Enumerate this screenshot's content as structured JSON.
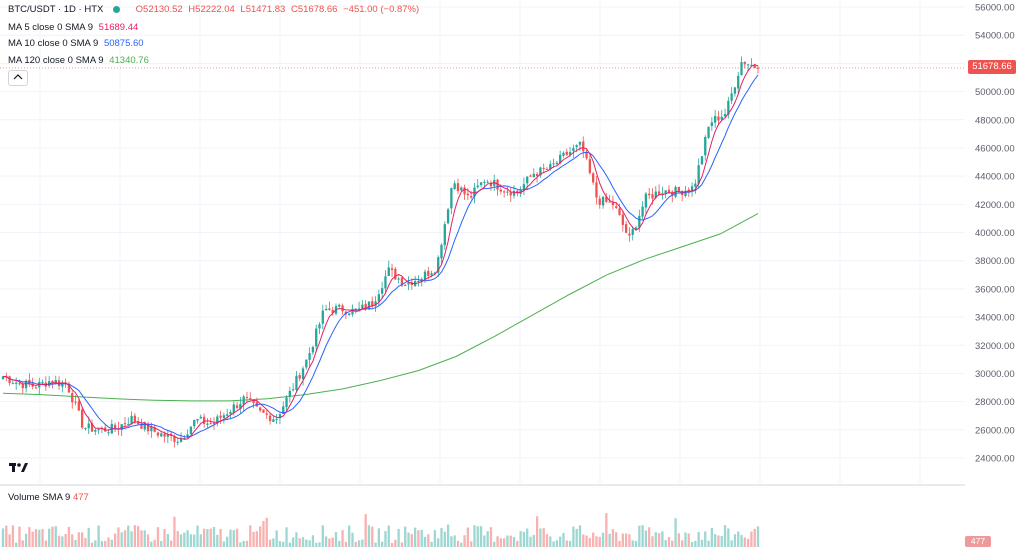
{
  "header": {
    "symbol": "BTC/USDT · 1D · HTX",
    "open": "O52130.52",
    "high": "H52222.04",
    "low": "L51471.83",
    "close": "C51678.66",
    "change": "−451.00 (−0.87%)"
  },
  "indicators": [
    {
      "label": "MA 5 close 0 SMA 9",
      "value": "51689.44",
      "color": "#e91e63"
    },
    {
      "label": "MA 10 close 0 SMA 9",
      "value": "50875.60",
      "color": "#2962ff"
    },
    {
      "label": "MA 120 close 0 SMA 9",
      "value": "41340.76",
      "color": "#4caf50"
    }
  ],
  "volume_legend": {
    "label": "Volume SMA 9",
    "value": "477"
  },
  "last_price_label": "51678.66",
  "volume_label": "477",
  "colors": {
    "up": "#26a69a",
    "down": "#ef5350",
    "ma5": "#e91e63",
    "ma10": "#2962ff",
    "ma120": "#4caf50"
  },
  "chart_data": {
    "type": "candlestick",
    "ytick_labels": [
      "56000.00",
      "54000.00",
      "52000.00",
      "50000.00",
      "48000.00",
      "46000.00",
      "44000.00",
      "42000.00",
      "40000.00",
      "38000.00",
      "36000.00",
      "34000.00",
      "32000.00",
      "30000.00",
      "28000.00",
      "26000.00",
      "24000.00"
    ],
    "ylim": [
      24000,
      56000
    ],
    "last_price": 51678.66,
    "close_keypoints": [
      29800,
      29300,
      29100,
      29500,
      29200,
      26200,
      26000,
      26100,
      26800,
      26100,
      25600,
      25300,
      26700,
      26400,
      27300,
      28200,
      27200,
      26800,
      28900,
      31200,
      34500,
      34600,
      34400,
      35000,
      37300,
      36400,
      36800,
      37600,
      43700,
      42400,
      43800,
      43200,
      42800,
      44200,
      44500,
      45500,
      46200,
      42300,
      42000,
      39500,
      42400,
      43000,
      42900,
      43200,
      47800,
      48500,
      52200,
      51678
    ],
    "ma120_keypoints": [
      28600,
      28500,
      28350,
      28200,
      28100,
      28050,
      28050,
      28200,
      28500,
      28900,
      29500,
      30200,
      31200,
      32600,
      34100,
      35600,
      37000,
      38100,
      39000,
      39900,
      41340
    ]
  }
}
